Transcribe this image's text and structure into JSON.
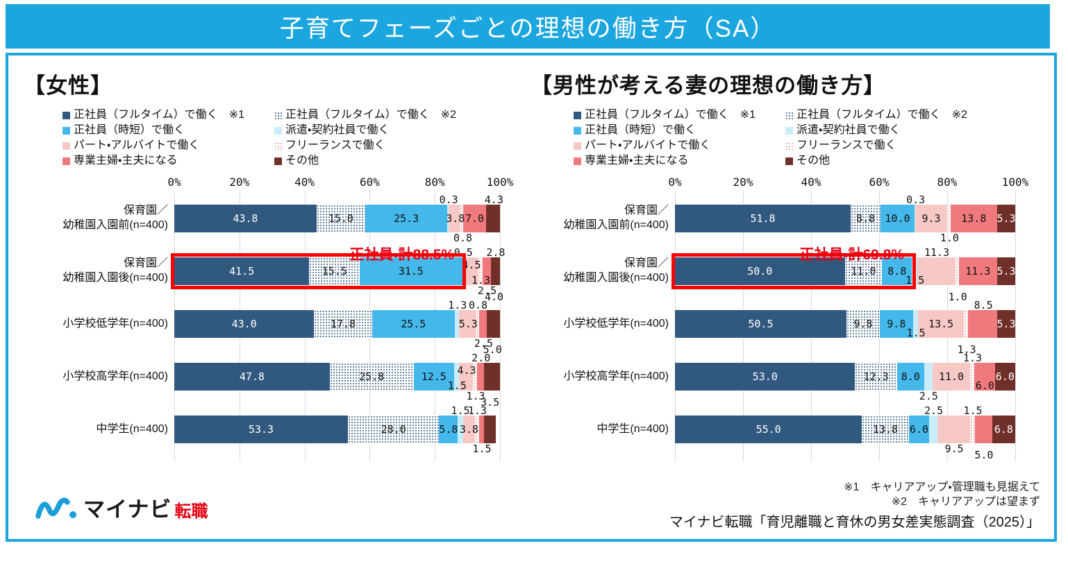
{
  "banner": {
    "title": "子育てフェーズごとの理想の働き方（SA）"
  },
  "colors": {
    "banner": "#1CA6E0",
    "annotation_red": "#E60012",
    "highlight_box_red": "#FF0000",
    "gridline": "#D9D9D9"
  },
  "segments": [
    {
      "name": "fulltime-seishain-1",
      "label": "正社員（フルタイム）で働く　※1",
      "color": "#31597F",
      "pattern": false,
      "text_color": "#ffffff"
    },
    {
      "name": "fulltime-seishain-2",
      "label": "正社員（フルタイム）で働く　※2",
      "color": "#31597F",
      "pattern": true,
      "pattern_base": "#ffffff",
      "text_color": "#111111"
    },
    {
      "name": "jitan-seishain",
      "label": "正社員（時短）で働く",
      "color": "#45B8EB",
      "pattern": false,
      "text_color": "#111111"
    },
    {
      "name": "haken-keiyaku",
      "label": "派遣・契約社員で働く",
      "color": "#C9EDFB",
      "pattern": false,
      "text_color": "#111111"
    },
    {
      "name": "part-arbeit",
      "label": "パート・アルバイトで働く",
      "color": "#F6C9C6",
      "pattern": false,
      "text_color": "#111111"
    },
    {
      "name": "freelance",
      "label": "フリーランスで働く",
      "color": "#F0A2A2",
      "pattern": true,
      "pattern_base": "#ffffff",
      "text_color": "#111111"
    },
    {
      "name": "sengyou-shufu",
      "label": "専業主婦・主夫になる",
      "color": "#F0797E",
      "pattern": false,
      "text_color": "#111111"
    },
    {
      "name": "sonota",
      "label": "その他",
      "color": "#70302A",
      "pattern": false,
      "text_color": "#ffffff"
    }
  ],
  "legend": {
    "columns": [
      [
        0,
        2,
        4,
        6
      ],
      [
        1,
        3,
        5,
        7
      ]
    ]
  },
  "chart_data": [
    {
      "type": "bar",
      "orientation": "horizontal-stacked",
      "title": "【女性】",
      "x_ticks": [
        "0%",
        "20%",
        "40%",
        "60%",
        "80%",
        "100%"
      ],
      "xlim": [
        0,
        100
      ],
      "categories": [
        "保育園／\n幼稚園入園前(n=400)",
        "保育園／\n幼稚園入園後(n=400)",
        "小学校低学年(n=400)",
        "小学校高学年(n=400)",
        "中学生(n=400)"
      ],
      "series": [
        {
          "name": "正社員（フルタイム）で働く　※1",
          "values": [
            43.8,
            41.5,
            43.0,
            47.8,
            53.3
          ]
        },
        {
          "name": "正社員（フルタイム）で働く　※2",
          "values": [
            15.0,
            15.5,
            17.8,
            25.8,
            28.0
          ]
        },
        {
          "name": "正社員（時短）で働く",
          "values": [
            25.3,
            31.5,
            25.5,
            12.5,
            5.8
          ]
        },
        {
          "name": "派遣・契約社員で働く",
          "values": [
            0.3,
            0.5,
            1.3,
            1.5,
            1.5
          ]
        },
        {
          "name": "パート・アルバイトで働く",
          "values": [
            3.8,
            4.5,
            5.3,
            4.3,
            3.8
          ]
        },
        {
          "name": "フリーランスで働く",
          "values": [
            0.8,
            1.3,
            0.8,
            1.3,
            1.3
          ]
        },
        {
          "name": "専業主婦・主夫になる",
          "values": [
            7.0,
            2.5,
            2.5,
            2.0,
            1.5
          ]
        },
        {
          "name": "その他",
          "values": [
            4.3,
            2.8,
            4.0,
            5.0,
            3.5
          ]
        }
      ],
      "label_pos": [
        [
          "in",
          "in",
          "in",
          "above",
          "mid",
          "below",
          "in",
          "above"
        ],
        [
          "in",
          "in",
          "in",
          "above",
          "mid-up",
          "mid-down",
          "below",
          "above"
        ],
        [
          "in",
          "in",
          "in",
          "above",
          "mid",
          "above",
          "below",
          "above2"
        ],
        [
          "in",
          "in",
          "in",
          "mid-down",
          "mid-up",
          "below",
          "above",
          "above2"
        ],
        [
          "in",
          "in",
          "in",
          "above",
          "mid",
          "above",
          "below",
          "above2"
        ]
      ],
      "annotation": {
        "text": "正社員・計88.5%",
        "row": 1,
        "end_pct": 88.5
      },
      "highlight": {
        "row": 1,
        "end_pct": 88.5
      }
    },
    {
      "type": "bar",
      "orientation": "horizontal-stacked",
      "title": "【男性が考える妻の理想の働き方】",
      "x_ticks": [
        "0%",
        "20%",
        "40%",
        "60%",
        "80%",
        "100%"
      ],
      "xlim": [
        0,
        100
      ],
      "categories": [
        "保育園／\n幼稚園入園前(n=400)",
        "保育園／\n幼稚園入園後(n=400)",
        "小学校低学年(n=400)",
        "小学校高学年(n=400)",
        "中学生(n=400)"
      ],
      "series": [
        {
          "name": "正社員（フルタイム）で働く　※1",
          "values": [
            51.8,
            50.0,
            50.5,
            53.0,
            55.0
          ]
        },
        {
          "name": "正社員（フルタイム）で働く　※2",
          "values": [
            8.8,
            11.0,
            9.8,
            12.3,
            13.8
          ]
        },
        {
          "name": "正社員（時短）で働く",
          "values": [
            10.0,
            8.8,
            9.8,
            8.0,
            6.0
          ]
        },
        {
          "name": "派遣・契約社員で働く",
          "values": [
            0.3,
            1.5,
            1.5,
            2.5,
            2.5
          ]
        },
        {
          "name": "パート・アルバイトで働く",
          "values": [
            9.3,
            11.3,
            13.5,
            11.0,
            9.5
          ]
        },
        {
          "name": "フリーランスで働く",
          "values": [
            1.0,
            1.0,
            1.3,
            1.3,
            1.5
          ]
        },
        {
          "name": "専業主婦・主夫になる",
          "values": [
            13.8,
            11.3,
            8.5,
            6.0,
            5.0
          ]
        },
        {
          "name": "その他",
          "values": [
            5.3,
            5.3,
            5.3,
            6.0,
            6.8
          ]
        }
      ],
      "label_pos": [
        [
          "in",
          "in",
          "in",
          "above",
          "in",
          "below",
          "in",
          "in"
        ],
        [
          "in",
          "in",
          "in",
          "mid-down",
          "above",
          "below2",
          "in",
          "in"
        ],
        [
          "in",
          "in",
          "in",
          "mid-down",
          "in",
          "below2",
          "above",
          "in"
        ],
        [
          "in",
          "in",
          "in",
          "below",
          "in",
          "above",
          "mid-down",
          "in"
        ],
        [
          "in",
          "in",
          "in",
          "above",
          "below",
          "above",
          "below2",
          "in"
        ]
      ],
      "annotation": {
        "text": "正社員・計69.8%",
        "row": 1,
        "end_pct": 69.8
      },
      "highlight": {
        "row": 1,
        "end_pct": 69.8
      }
    }
  ],
  "notes": {
    "line1": "※1　キャリアアップ・管理職も見据えて",
    "line2": "※2　キャリアアップは望まず"
  },
  "source": "マイナビ転職「育児離職と育休の男女差実態調査（2025）」",
  "logo": {
    "main": "マイナビ",
    "sub": "転職"
  }
}
